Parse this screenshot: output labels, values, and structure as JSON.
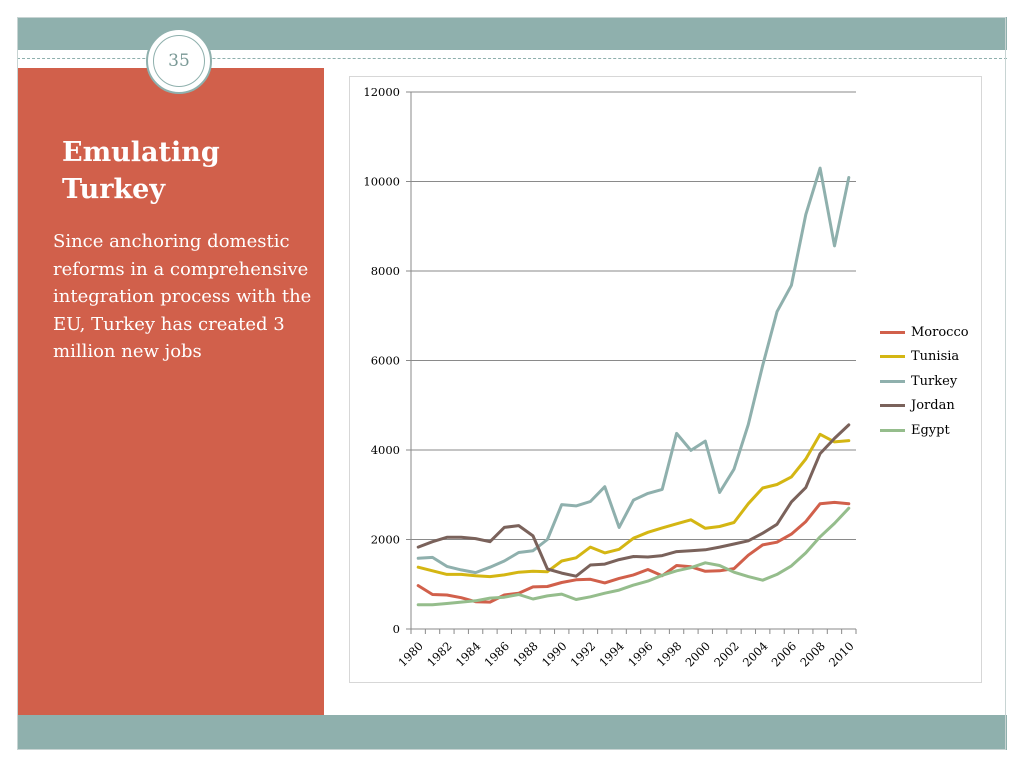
{
  "slide": {
    "number": "35",
    "title": "Emulating Turkey",
    "body": "Since anchoring domestic reforms in a comprehensive integration process with the EU, Turkey has created 3 million new jobs"
  },
  "colors": {
    "accent_panel": "#d1604b",
    "band": "#8fb0ad"
  },
  "chart_data": {
    "type": "line",
    "title": "",
    "xlabel": "",
    "ylabel": "",
    "ylim": [
      0,
      12000
    ],
    "yticks": [
      "0",
      "2000",
      "4000",
      "6000",
      "8000",
      "10000",
      "12000"
    ],
    "x": [
      1980,
      1981,
      1982,
      1983,
      1984,
      1985,
      1986,
      1987,
      1988,
      1989,
      1990,
      1991,
      1992,
      1993,
      1994,
      1995,
      1996,
      1997,
      1998,
      1999,
      2000,
      2001,
      2002,
      2003,
      2004,
      2005,
      2006,
      2007,
      2008,
      2009,
      2010
    ],
    "xtick_labels": [
      "1980",
      "1982",
      "1984",
      "1986",
      "1988",
      "1990",
      "1992",
      "1994",
      "1996",
      "1998",
      "2000",
      "2002",
      "2004",
      "2006",
      "2008",
      "2010"
    ],
    "legend_position": "right",
    "series": [
      {
        "name": "Morocco",
        "color": "#d1604b",
        "values": [
          970,
          770,
          760,
          700,
          610,
          600,
          760,
          800,
          940,
          950,
          1040,
          1100,
          1110,
          1030,
          1130,
          1210,
          1330,
          1190,
          1420,
          1390,
          1290,
          1300,
          1350,
          1650,
          1880,
          1940,
          2120,
          2400,
          2800,
          2830,
          2800
        ]
      },
      {
        "name": "Tunisia",
        "color": "#d4b613",
        "values": [
          1380,
          1300,
          1220,
          1220,
          1190,
          1170,
          1210,
          1270,
          1290,
          1280,
          1520,
          1590,
          1830,
          1700,
          1780,
          2030,
          2160,
          2260,
          2350,
          2440,
          2250,
          2290,
          2380,
          2800,
          3150,
          3230,
          3400,
          3800,
          4350,
          4180,
          4210
        ]
      },
      {
        "name": "Turkey",
        "color": "#8fb0ad",
        "values": [
          1580,
          1600,
          1400,
          1320,
          1260,
          1380,
          1520,
          1710,
          1750,
          2000,
          2780,
          2750,
          2850,
          3180,
          2270,
          2880,
          3030,
          3120,
          4370,
          3990,
          4200,
          3050,
          3570,
          4570,
          5890,
          7090,
          7680,
          9260,
          10300,
          8560,
          10090
        ]
      },
      {
        "name": "Jordan",
        "color": "#7a625b",
        "values": [
          1830,
          1950,
          2050,
          2050,
          2020,
          1950,
          2270,
          2310,
          2080,
          1340,
          1250,
          1180,
          1430,
          1450,
          1550,
          1620,
          1610,
          1640,
          1730,
          1750,
          1770,
          1830,
          1900,
          1970,
          2140,
          2340,
          2840,
          3160,
          3920,
          4260,
          4560
        ]
      },
      {
        "name": "Egypt",
        "color": "#95bd8c",
        "values": [
          540,
          540,
          570,
          600,
          630,
          690,
          710,
          770,
          670,
          740,
          780,
          660,
          720,
          800,
          870,
          980,
          1070,
          1200,
          1300,
          1370,
          1480,
          1420,
          1270,
          1170,
          1090,
          1220,
          1410,
          1700,
          2060,
          2360,
          2700
        ]
      }
    ]
  }
}
